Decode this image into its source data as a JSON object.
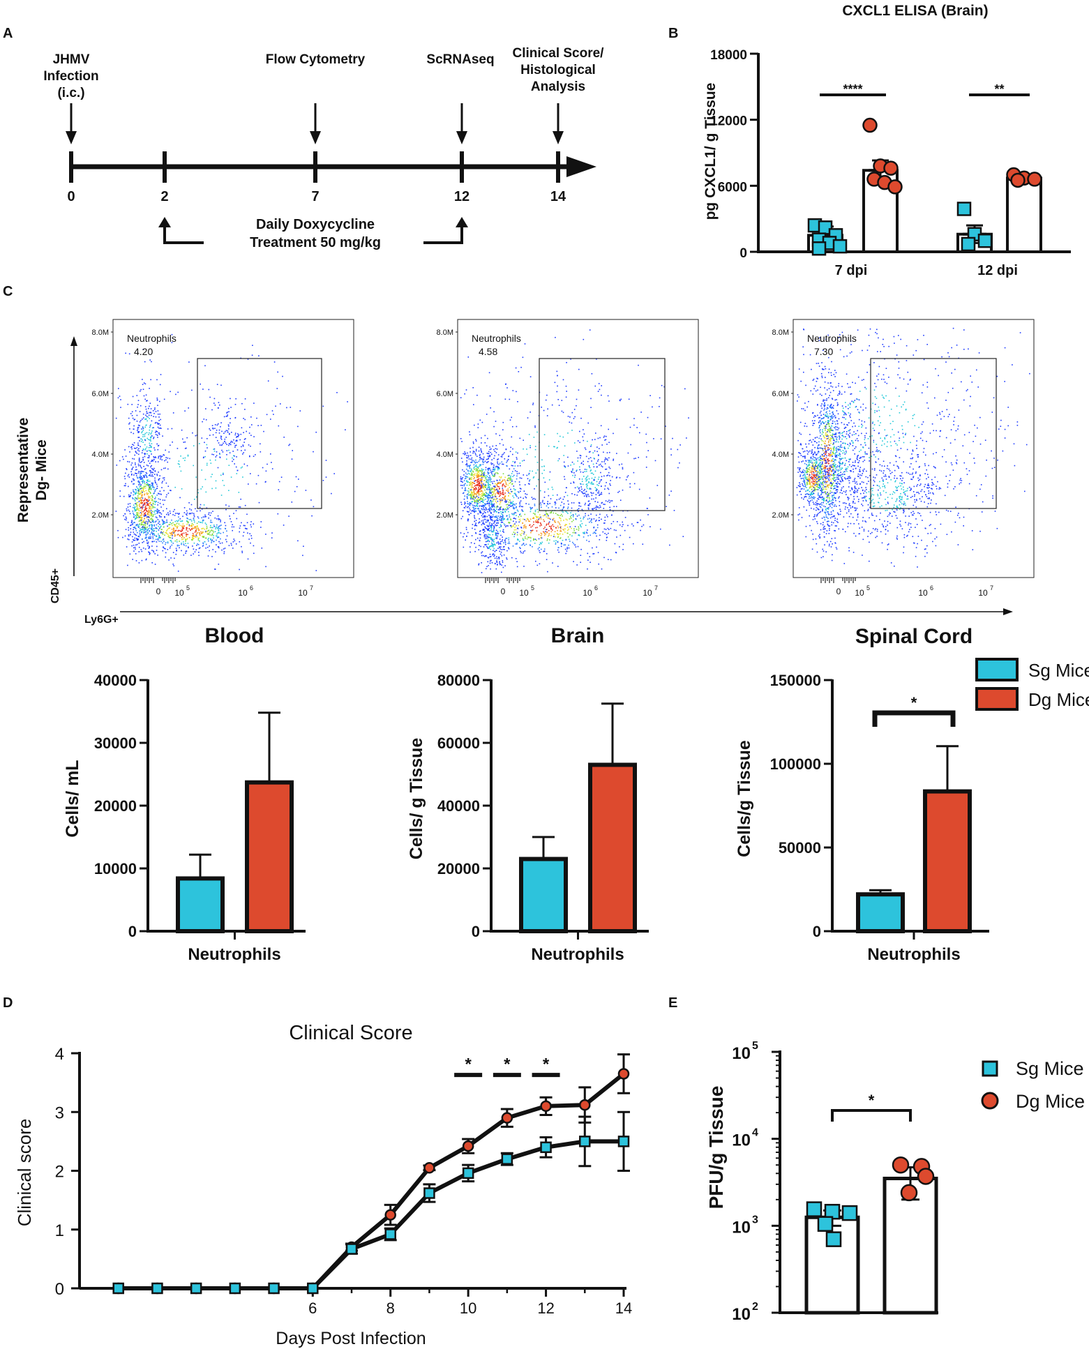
{
  "colors": {
    "sg": "#2dc3dc",
    "dg": "#dd4a2e",
    "axis": "#111111"
  },
  "panel_labels": {
    "a": "A",
    "b": "B",
    "c": "C",
    "d": "D",
    "e": "E"
  },
  "timeline": {
    "arrow_labels": [
      {
        "day": 0,
        "lines": [
          "JHMV",
          "Infection",
          "(i.c.)"
        ]
      },
      {
        "day": 7,
        "lines": [
          "Flow Cytometry"
        ]
      },
      {
        "day": 12,
        "lines": [
          "ScRNAseq"
        ]
      },
      {
        "day": 14,
        "lines": [
          "Clinical Score/",
          "Histological",
          "Analysis"
        ]
      }
    ],
    "ticks": [
      "0",
      "2",
      "7",
      "12",
      "14"
    ],
    "treatment": [
      "Daily Doxycycline",
      "Treatment 50 mg/kg"
    ]
  },
  "flow": {
    "ylabel_lines": [
      "Representative",
      "Dg- Mice"
    ],
    "y_axis_marker": "CD45+",
    "x_axis_marker": "Ly6G+",
    "y_ticks": [
      "8.0M",
      "6.0M",
      "4.0M",
      "2.0M"
    ],
    "x_ticks": {
      "zero": "0",
      "e5": "5",
      "e6": "6",
      "e7": "7",
      "base": "10"
    },
    "gate_name": "Neutrophils",
    "panels": [
      {
        "tissue": "Blood",
        "gate_value": "4.20"
      },
      {
        "tissue": "Brain",
        "gate_value": "4.58"
      },
      {
        "tissue": "Spinal Cord",
        "gate_value": "7.30"
      }
    ]
  },
  "legends": {
    "bar": [
      "Sg Mice",
      "Dg Mice"
    ],
    "point": [
      "Sg Mice",
      "Dg Mice"
    ]
  },
  "chart_data": [
    {
      "id": "cxcl1",
      "type": "bar",
      "title": "CXCL1 ELISA (Brain)",
      "ylabel": "pg CXCL1/ g Tissue",
      "categories": [
        "7 dpi",
        "12 dpi"
      ],
      "ylim": [
        0,
        18000
      ],
      "yticks": [
        0,
        6000,
        12000,
        18000
      ],
      "series": [
        {
          "name": "Sg Mice",
          "values": [
            1500,
            1600
          ],
          "errors": [
            800,
            800
          ],
          "points": [
            [
              2400,
              2200,
              1500,
              1100,
              800,
              500,
              300
            ],
            [
              3900,
              1600,
              1000,
              700
            ]
          ]
        },
        {
          "name": "Dg Mice",
          "values": [
            7400,
            6700
          ],
          "errors": [
            900,
            300
          ],
          "points": [
            [
              11500,
              7800,
              7600,
              6600,
              6300,
              5900
            ],
            [
              7000,
              6700,
              6600,
              6500
            ]
          ]
        }
      ],
      "significance": [
        "****",
        "**"
      ]
    },
    {
      "id": "blood",
      "type": "bar",
      "title": "Blood",
      "xlabel": "Neutrophils",
      "ylabel": "Cells/ mL",
      "ylim": [
        0,
        40000
      ],
      "yticks": [
        0,
        10000,
        20000,
        30000,
        40000
      ],
      "series": [
        {
          "name": "Sg Mice",
          "value": 8400,
          "error": 3800
        },
        {
          "name": "Dg Mice",
          "value": 23700,
          "error": 11100
        }
      ]
    },
    {
      "id": "brain",
      "type": "bar",
      "title": "Brain",
      "xlabel": "Neutrophils",
      "ylabel": "Cells/ g Tissue",
      "ylim": [
        0,
        80000
      ],
      "yticks": [
        0,
        20000,
        40000,
        60000,
        80000
      ],
      "series": [
        {
          "name": "Sg Mice",
          "value": 23000,
          "error": 7000
        },
        {
          "name": "Dg Mice",
          "value": 53000,
          "error": 19500
        }
      ]
    },
    {
      "id": "spinal",
      "type": "bar",
      "title": "Spinal Cord",
      "xlabel": "Neutrophils",
      "ylabel": "Cells/g Tissue",
      "ylim": [
        0,
        150000
      ],
      "yticks": [
        0,
        50000,
        100000,
        150000
      ],
      "series": [
        {
          "name": "Sg Mice",
          "value": 22000,
          "error": 2500
        },
        {
          "name": "Dg Mice",
          "value": 83500,
          "error": 27000
        }
      ],
      "significance": "*"
    },
    {
      "id": "clinical",
      "type": "line",
      "title": "Clinical Score",
      "xlabel": "Days Post Infection",
      "ylabel": "Clinical score",
      "xlim": [
        0,
        14
      ],
      "ylim": [
        0,
        4
      ],
      "xticks": [
        6,
        8,
        10,
        12,
        14
      ],
      "yticks": [
        0,
        1,
        2,
        3,
        4
      ],
      "x": [
        1,
        2,
        3,
        4,
        5,
        6,
        7,
        8,
        9,
        10,
        11,
        12,
        13,
        14
      ],
      "series": [
        {
          "name": "Sg Mice",
          "values": [
            0,
            0,
            0,
            0,
            0,
            0,
            0.67,
            0.92,
            1.62,
            1.96,
            2.2,
            2.4,
            2.5,
            2.5
          ],
          "errors": [
            0,
            0,
            0,
            0,
            0,
            0,
            0.08,
            0.1,
            0.15,
            0.14,
            0.1,
            0.17,
            0.42,
            0.5
          ]
        },
        {
          "name": "Dg Mice",
          "values": [
            0,
            0,
            0,
            0,
            0,
            0,
            0.7,
            1.25,
            2.05,
            2.42,
            2.9,
            3.1,
            3.12,
            3.65
          ],
          "errors": [
            0,
            0,
            0,
            0,
            0,
            0,
            0.06,
            0.17,
            0.04,
            0.12,
            0.15,
            0.15,
            0.3,
            0.33
          ]
        }
      ],
      "significance": [
        {
          "x": 10,
          "label": "*"
        },
        {
          "x": 11,
          "label": "*"
        },
        {
          "x": 12,
          "label": "*"
        }
      ]
    },
    {
      "id": "pfu",
      "type": "bar",
      "ylabel": "PFU/g Tissue",
      "yscale": "log",
      "ylim": [
        100,
        100000
      ],
      "ytick_base": "10",
      "ytick_exponents": [
        "2",
        "3",
        "4",
        "5"
      ],
      "series": [
        {
          "name": "Sg Mice",
          "value": 1250,
          "error_low": 1000,
          "error_high": 1500,
          "points": [
            1550,
            1450,
            1400,
            1050,
            700
          ]
        },
        {
          "name": "Dg Mice",
          "value": 3500,
          "error_low": 2000,
          "error_high": 4700,
          "points": [
            5000,
            4800,
            3700,
            2400
          ]
        }
      ],
      "significance": "*"
    }
  ]
}
